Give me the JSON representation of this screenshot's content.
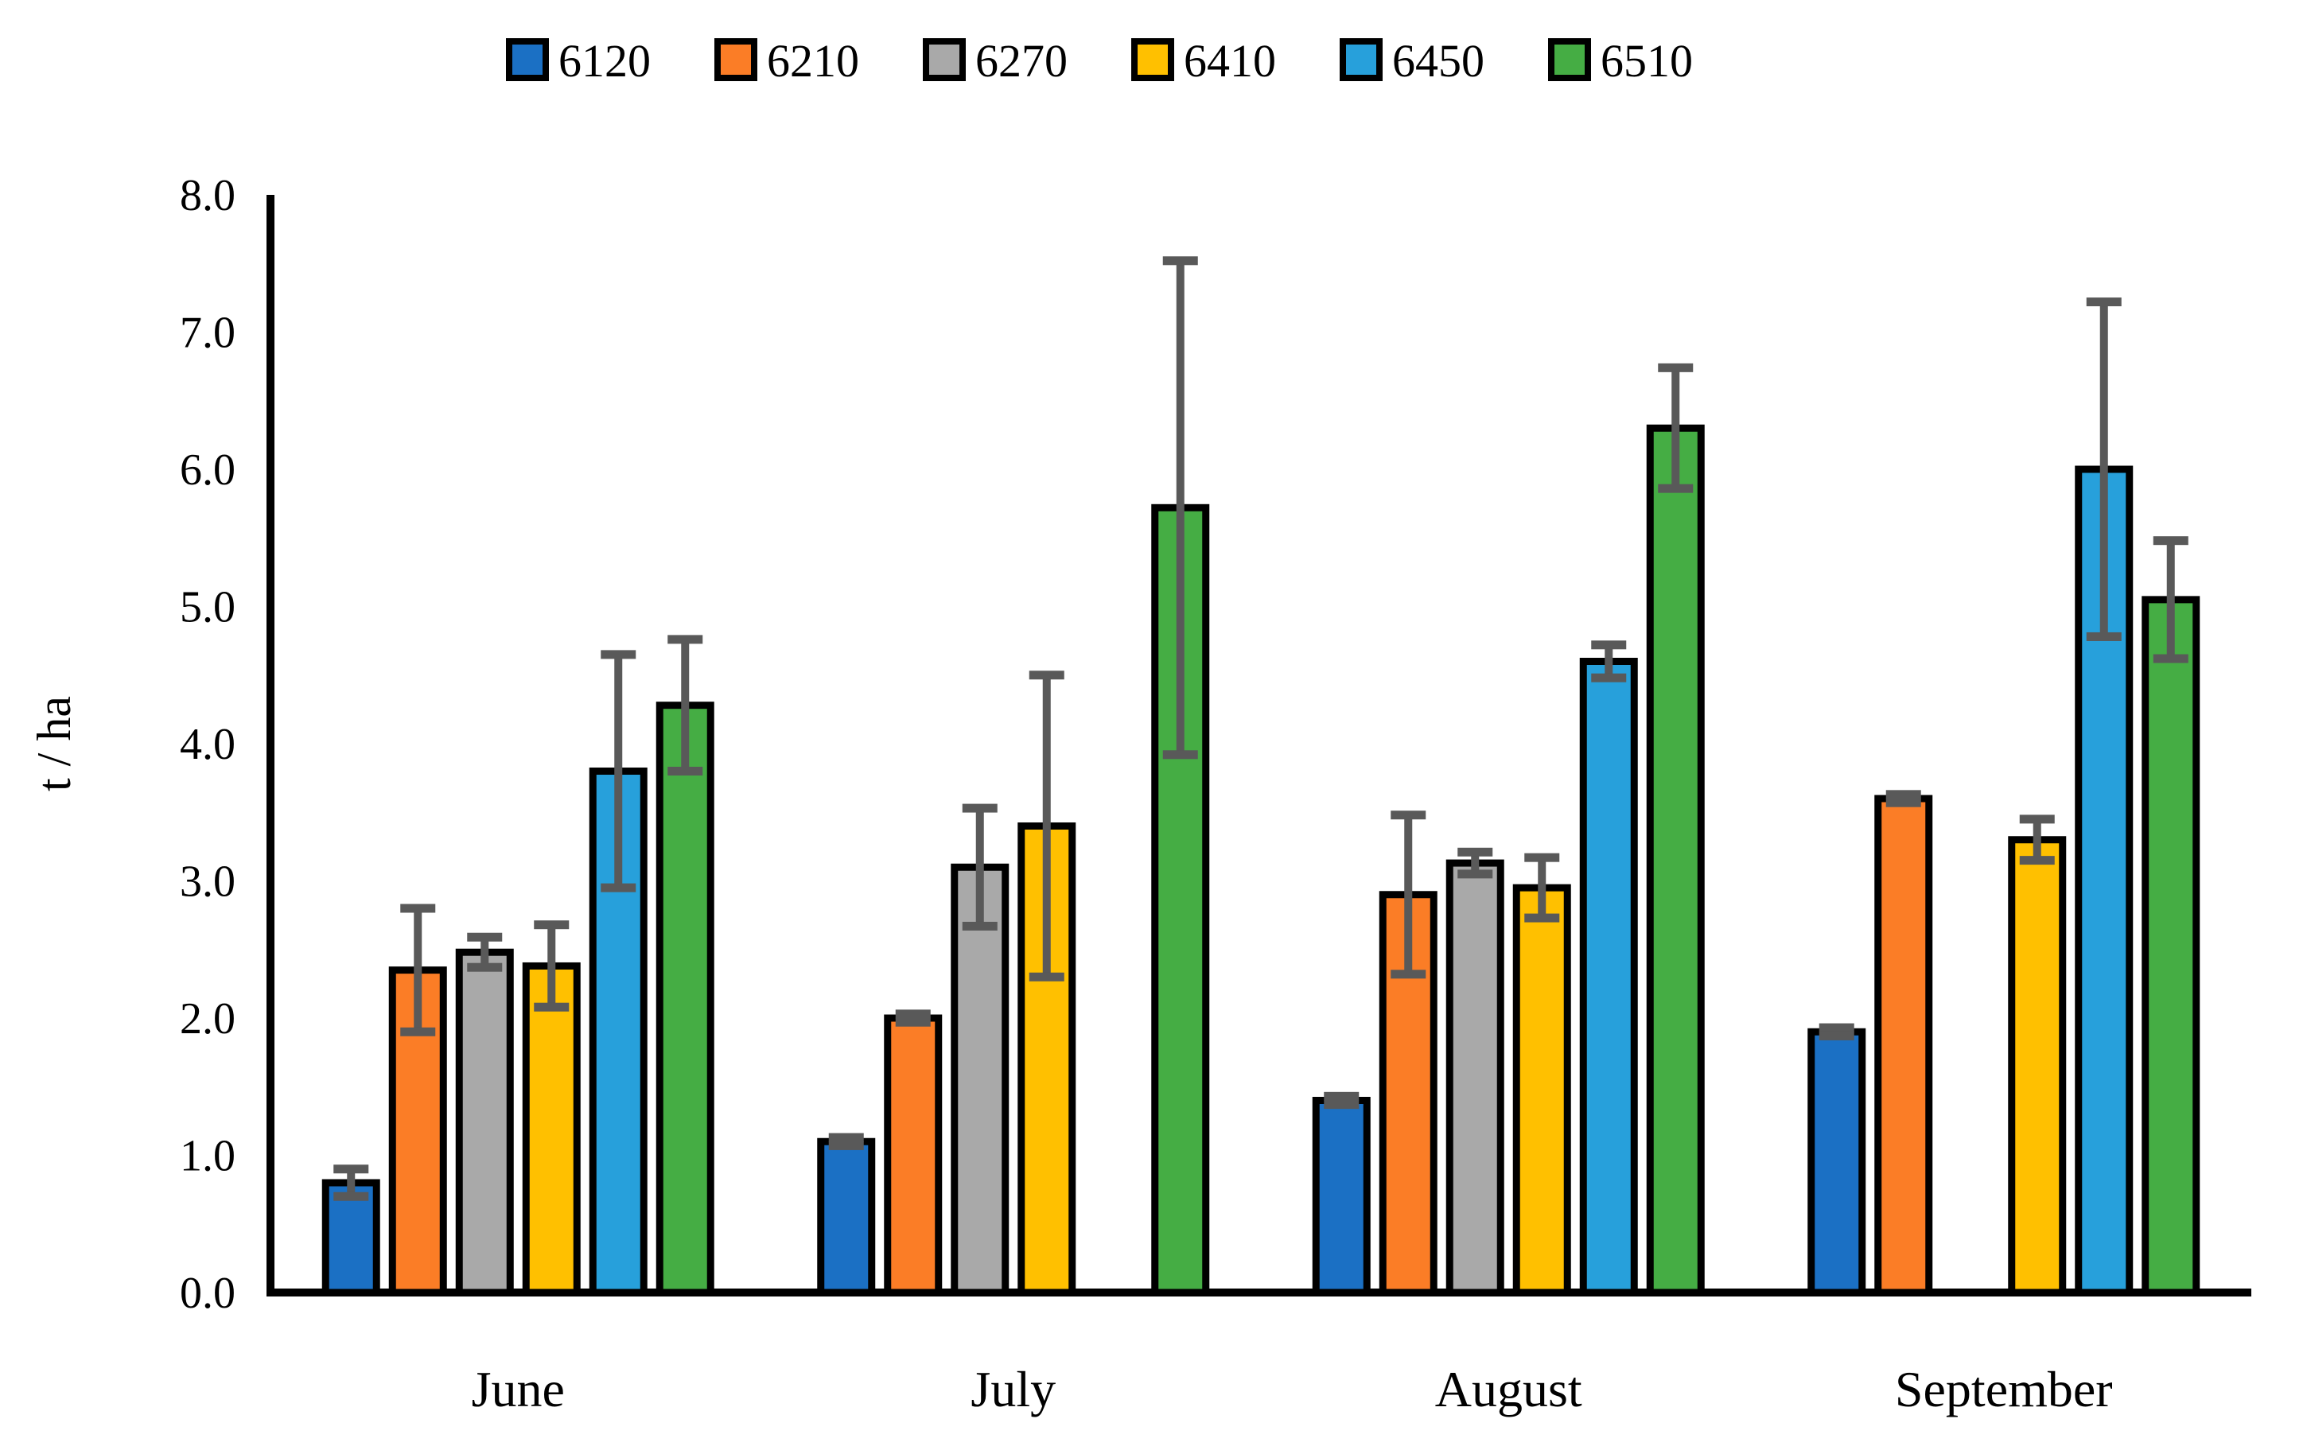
{
  "chart_data": {
    "type": "bar",
    "title": "",
    "xlabel": "",
    "ylabel": "t / ha",
    "ylim": [
      0.0,
      8.0
    ],
    "ytick_step": 1.0,
    "ytick_labels": [
      "0.0",
      "1.0",
      "2.0",
      "3.0",
      "4.0",
      "5.0",
      "6.0",
      "7.0",
      "8.0"
    ],
    "grid": false,
    "legend_position": "top-center",
    "categories": [
      "June",
      "July",
      "August",
      "September"
    ],
    "series": [
      {
        "name": "6120",
        "color": "#1B70C4",
        "values": [
          0.8,
          1.1,
          1.4,
          1.9
        ],
        "errors": [
          0.1,
          0.03,
          0.03,
          0.03
        ]
      },
      {
        "name": "6210",
        "color": "#FB7D26",
        "values": [
          2.35,
          2.0,
          2.9,
          3.6
        ],
        "errors": [
          0.45,
          0.03,
          0.58,
          0.03
        ]
      },
      {
        "name": "6270",
        "color": "#A9A9A9",
        "values": [
          2.48,
          3.1,
          3.13,
          null
        ],
        "errors": [
          0.11,
          0.43,
          0.08,
          null
        ]
      },
      {
        "name": "6410",
        "color": "#FFC000",
        "values": [
          2.38,
          3.4,
          2.95,
          3.3
        ],
        "errors": [
          0.3,
          1.1,
          0.22,
          0.15
        ]
      },
      {
        "name": "6450",
        "color": "#27A0DB",
        "values": [
          3.8,
          null,
          4.6,
          6.0
        ],
        "errors": [
          0.85,
          null,
          0.12,
          1.22
        ]
      },
      {
        "name": "6510",
        "color": "#45AD44",
        "values": [
          4.28,
          5.72,
          6.3,
          5.05
        ],
        "errors": [
          0.48,
          1.8,
          0.44,
          0.43
        ]
      }
    ],
    "error_bar_color": "#595959",
    "bar_outline_color": "#000000",
    "axis_color": "#000000"
  }
}
